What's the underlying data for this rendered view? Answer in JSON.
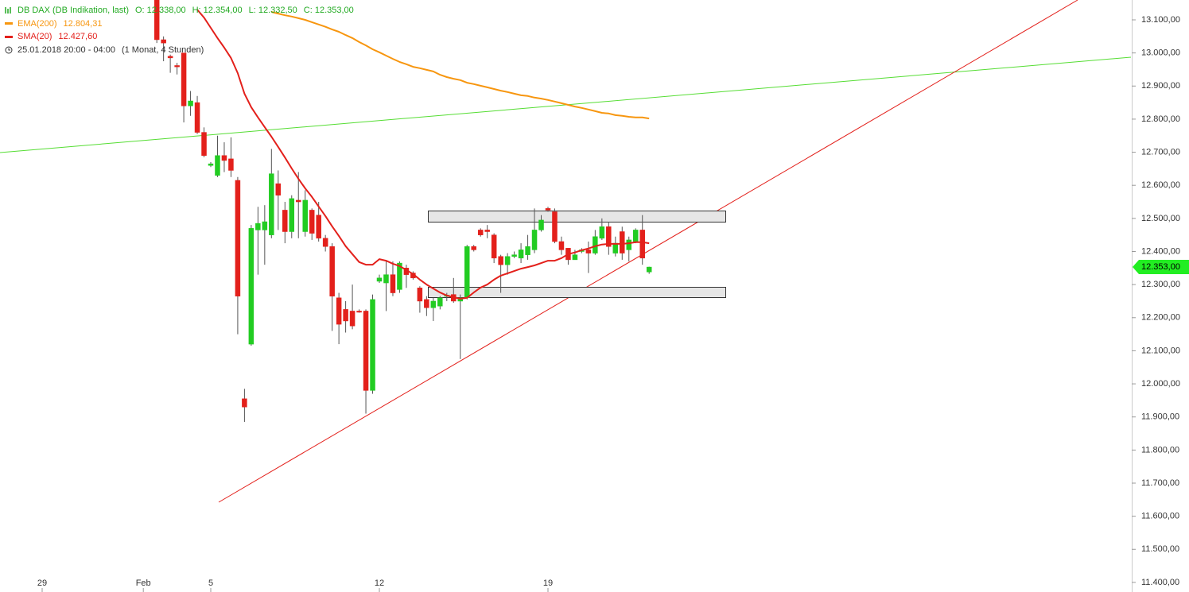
{
  "chart_data": {
    "type": "candlestick",
    "header": {
      "ohlc_labels": [
        "O: 12.338,00",
        "H: 12.354,00",
        "L: 12.332,50",
        "C: 12.353,00"
      ],
      "period": "25.01.2018 20:00 - 04:00",
      "interval": "(1 Monat, 4 Stunden)"
    },
    "last_price_label": "12.353,00",
    "categories": [
      "29",
      null,
      null,
      null,
      null,
      null,
      null,
      null,
      null,
      null,
      null,
      null,
      null,
      null,
      null,
      "Feb",
      null,
      null,
      null,
      null,
      null,
      null,
      null,
      null,
      null,
      "5",
      null,
      null,
      null,
      null,
      null,
      null,
      null,
      null,
      null,
      null,
      null,
      null,
      null,
      null,
      null,
      null,
      null,
      null,
      null,
      null,
      null,
      null,
      null,
      null,
      "12",
      null,
      null,
      null,
      null,
      null,
      null,
      null,
      null,
      null,
      null,
      null,
      null,
      null,
      null,
      null,
      null,
      null,
      null,
      null,
      null,
      null,
      null,
      null,
      null,
      "19",
      null,
      null,
      null,
      null,
      null,
      null,
      null,
      null,
      null,
      null,
      null,
      null,
      null,
      null,
      null
    ],
    "ylim": [
      11371,
      13160
    ],
    "yticks": [
      {
        "value": 11400,
        "label": "11.400,00"
      },
      {
        "value": 11500,
        "label": "11.500,00"
      },
      {
        "value": 11600,
        "label": "11.600,00"
      },
      {
        "value": 11700,
        "label": "11.700,00"
      },
      {
        "value": 11800,
        "label": "11.800,00"
      },
      {
        "value": 11900,
        "label": "11.900,00"
      },
      {
        "value": 12000,
        "label": "12.000,00"
      },
      {
        "value": 12100,
        "label": "12.100,00"
      },
      {
        "value": 12200,
        "label": "12.200,00"
      },
      {
        "value": 12300,
        "label": "12.300,00"
      },
      {
        "value": 12400,
        "label": "12.400,00"
      },
      {
        "value": 12500,
        "label": "12.500,00"
      },
      {
        "value": 12600,
        "label": "12.600,00"
      },
      {
        "value": 12700,
        "label": "12.700,00"
      },
      {
        "value": 12800,
        "label": "12.800,00"
      },
      {
        "value": 12900,
        "label": "12.900,00"
      },
      {
        "value": 13000,
        "label": "13.000,00"
      },
      {
        "value": 13100,
        "label": "13.100,00"
      }
    ],
    "series": [
      {
        "name": "DB DAX (DB Indikation, last)",
        "type": "candlestick",
        "color": "#22bb22",
        "up_color": "#22cc22",
        "down_color": "#e3201b",
        "open": [
          null,
          null,
          null,
          null,
          null,
          null,
          null,
          null,
          null,
          null,
          null,
          null,
          null,
          null,
          null,
          null,
          null,
          13180,
          13040,
          12990,
          12962,
          13000,
          12840,
          12850,
          12760,
          12660,
          12630,
          12690,
          12680,
          12615,
          11955,
          12120,
          12465,
          12465,
          12450,
          12605,
          12525,
          12460,
          12555,
          12460,
          12525,
          12510,
          12440,
          12415,
          12260,
          12225,
          12220,
          12220,
          12220,
          11980,
          12310,
          12305,
          12330,
          12285,
          12350,
          12335,
          12290,
          12255,
          12230,
          12235,
          12265,
          12270,
          12250,
          12260,
          12415,
          12465,
          12465,
          12450,
          12385,
          12360,
          12385,
          12380,
          12390,
          12405,
          12465,
          12530,
          12520,
          12430,
          12410,
          12375,
          12400,
          12405,
          12395,
          12440,
          12475,
          12395,
          12460,
          12405,
          12430,
          12465,
          12338
        ],
        "high": [
          null,
          null,
          null,
          null,
          null,
          null,
          null,
          null,
          null,
          null,
          null,
          null,
          null,
          null,
          null,
          null,
          null,
          13210,
          13050,
          12995,
          12970,
          13000,
          12885,
          12870,
          12775,
          12670,
          12750,
          12730,
          12745,
          12625,
          11985,
          12480,
          12535,
          12540,
          12710,
          12645,
          12550,
          12570,
          12640,
          12585,
          12530,
          12550,
          12450,
          12425,
          12275,
          12250,
          12300,
          12225,
          12225,
          12270,
          12330,
          12370,
          12370,
          12370,
          12360,
          12340,
          12295,
          12265,
          12260,
          12265,
          12275,
          12320,
          12270,
          12420,
          12420,
          12470,
          12480,
          12455,
          12390,
          12395,
          12400,
          12425,
          12450,
          12530,
          12510,
          12535,
          12530,
          12445,
          12410,
          12405,
          12410,
          12430,
          12465,
          12500,
          12490,
          12445,
          12475,
          12445,
          12470,
          12510,
          12354
        ],
        "low": [
          null,
          null,
          null,
          null,
          null,
          null,
          null,
          null,
          null,
          null,
          null,
          null,
          null,
          null,
          null,
          null,
          null,
          13030,
          12975,
          12940,
          12935,
          12790,
          12810,
          12755,
          12685,
          12655,
          12625,
          12640,
          12625,
          12150,
          11885,
          12115,
          12330,
          12360,
          12440,
          12465,
          12425,
          12440,
          12440,
          12445,
          12435,
          12430,
          12400,
          12160,
          12120,
          12155,
          12165,
          12215,
          11910,
          11970,
          12305,
          12220,
          12265,
          12275,
          12290,
          12315,
          12215,
          12205,
          12190,
          12225,
          12250,
          12245,
          12075,
          12255,
          12400,
          12445,
          12440,
          12365,
          12275,
          12330,
          12380,
          12365,
          12375,
          12395,
          12460,
          12520,
          12425,
          12390,
          12360,
          12375,
          12395,
          12335,
          12390,
          12435,
          12390,
          12385,
          12375,
          12370,
          12425,
          12360,
          12332.5
        ],
        "close": [
          null,
          null,
          null,
          null,
          null,
          null,
          null,
          null,
          null,
          null,
          null,
          null,
          null,
          null,
          null,
          null,
          null,
          13040,
          13030,
          12985,
          12958,
          12840,
          12855,
          12760,
          12690,
          12665,
          12690,
          12675,
          12645,
          12265,
          11930,
          12470,
          12485,
          12490,
          12635,
          12570,
          12460,
          12560,
          12550,
          12555,
          12455,
          12440,
          12415,
          12265,
          12180,
          12190,
          12175,
          12218,
          11980,
          12255,
          12320,
          12330,
          12275,
          12365,
          12330,
          12320,
          12250,
          12230,
          12250,
          12260,
          12268,
          12250,
          12260,
          12415,
          12405,
          12450,
          12460,
          12380,
          12360,
          12385,
          12390,
          12405,
          12415,
          12465,
          12495,
          12525,
          12430,
          12405,
          12375,
          12390,
          12405,
          12395,
          12445,
          12475,
          12415,
          12425,
          12395,
          12435,
          12465,
          12380,
          12353
        ]
      },
      {
        "name": "EMA(200)",
        "type": "line",
        "color": "#f7960f",
        "last_label": "12.804,31",
        "values": [
          null,
          null,
          null,
          null,
          null,
          null,
          null,
          null,
          null,
          null,
          null,
          null,
          null,
          null,
          null,
          null,
          null,
          null,
          null,
          null,
          null,
          null,
          null,
          null,
          null,
          null,
          null,
          null,
          null,
          null,
          null,
          null,
          null,
          null,
          13124,
          13119,
          13114,
          13110,
          13105,
          13100,
          13093,
          13086,
          13079,
          13071,
          13064,
          13054,
          13045,
          13033,
          13023,
          13011,
          13002,
          12992,
          12982,
          12973,
          12966,
          12958,
          12954,
          12949,
          12944,
          12934,
          12927,
          12922,
          12918,
          12910,
          12906,
          12901,
          12896,
          12891,
          12886,
          12882,
          12877,
          12872,
          12870,
          12865,
          12862,
          12858,
          12853,
          12848,
          12843,
          12838,
          12834,
          12829,
          12824,
          12819,
          12817,
          12812,
          12810,
          12807,
          12805,
          12805,
          12802
        ]
      },
      {
        "name": "SMA(20)",
        "type": "line",
        "color": "#e3201b",
        "last_label": "12.427,60",
        "values": [
          null,
          null,
          null,
          null,
          null,
          null,
          null,
          null,
          null,
          null,
          null,
          null,
          null,
          null,
          null,
          null,
          null,
          null,
          null,
          null,
          null,
          null,
          null,
          13131,
          13107,
          13076,
          13045,
          13016,
          12985,
          12939,
          12877,
          12836,
          12805,
          12776,
          12747,
          12716,
          12684,
          12651,
          12620,
          12591,
          12565,
          12536,
          12507,
          12476,
          12447,
          12416,
          12392,
          12368,
          12360,
          12360,
          12377,
          12372,
          12363,
          12356,
          12344,
          12332,
          12315,
          12300,
          12288,
          12276,
          12267,
          12262,
          12257,
          12260,
          12276,
          12291,
          12300,
          12315,
          12327,
          12334,
          12341,
          12348,
          12353,
          12358,
          12365,
          12372,
          12372,
          12380,
          12392,
          12397,
          12404,
          12409,
          12416,
          12421,
          12423,
          12423,
          12423,
          12425,
          12428,
          12428,
          12425
        ]
      }
    ]
  }
}
